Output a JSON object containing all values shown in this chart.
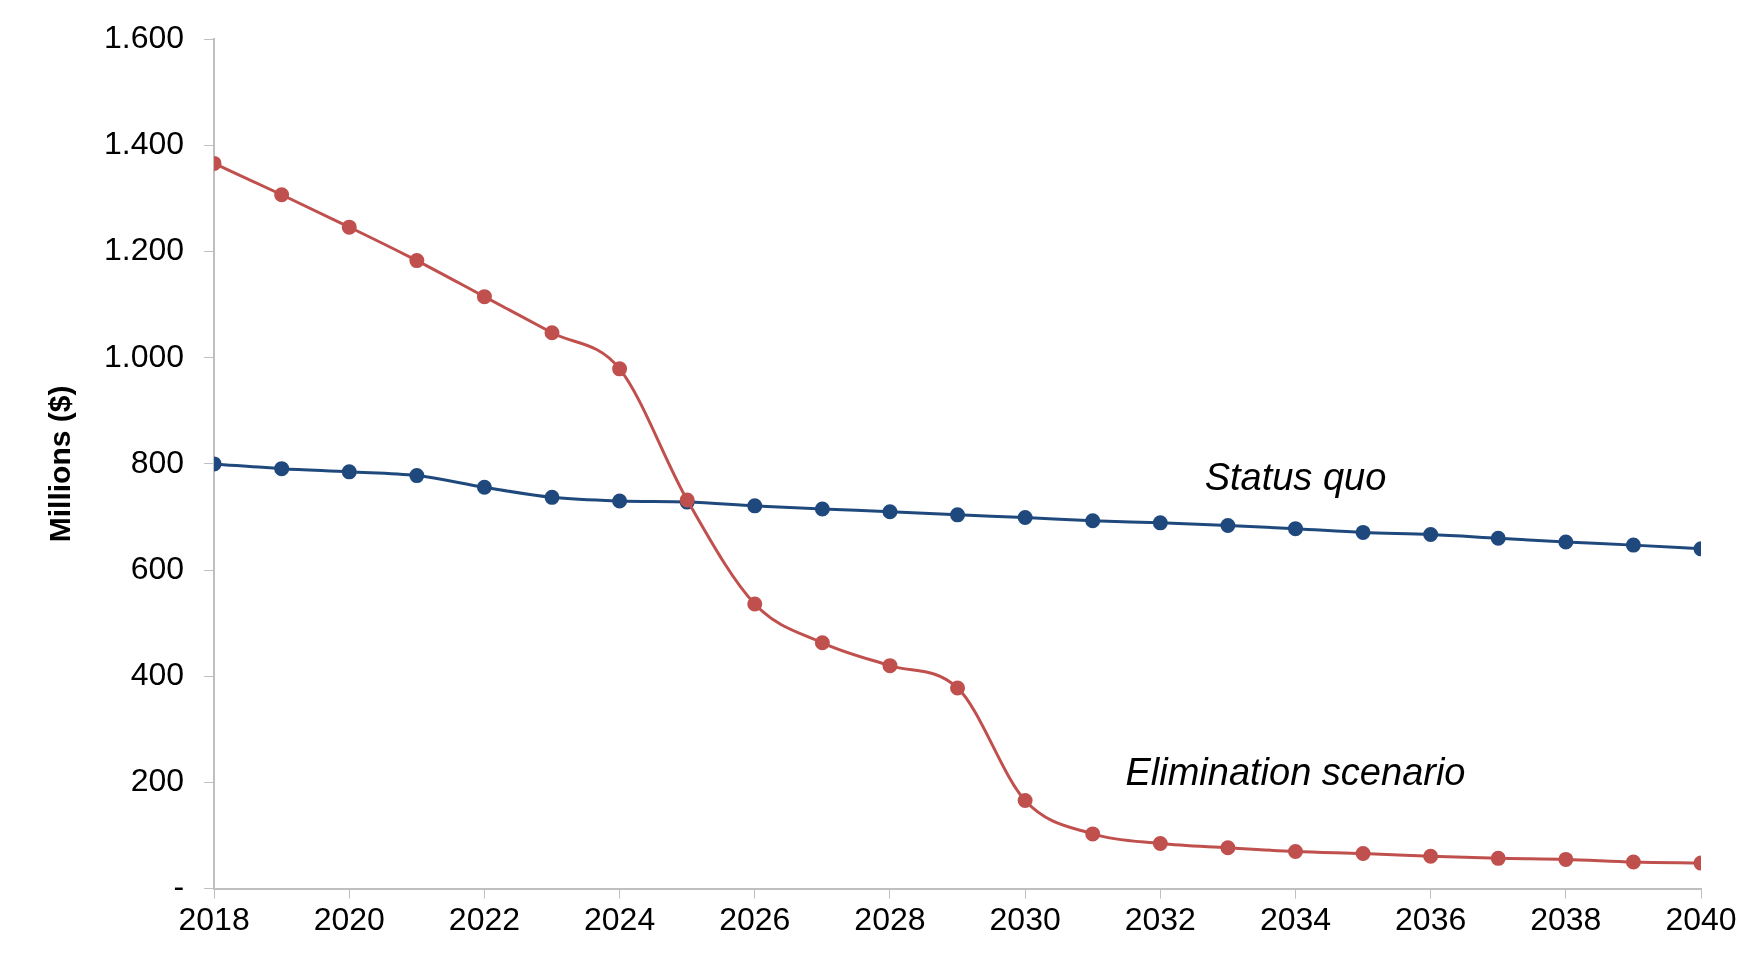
{
  "chart_data": {
    "type": "line",
    "ylabel": "Millions ($)",
    "x": [
      2018,
      2019,
      2020,
      2021,
      2022,
      2023,
      2024,
      2025,
      2026,
      2027,
      2028,
      2029,
      2030,
      2031,
      2032,
      2033,
      2034,
      2035,
      2036,
      2037,
      2038,
      2039,
      2040
    ],
    "xlim": [
      2018,
      2040
    ],
    "xticks": [
      2018,
      2020,
      2022,
      2024,
      2026,
      2028,
      2030,
      2032,
      2034,
      2036,
      2038,
      2040
    ],
    "ylim": [
      0,
      1600
    ],
    "yticks": [
      {
        "value": 0,
        "label": "-"
      },
      {
        "value": 200,
        "label": "200"
      },
      {
        "value": 400,
        "label": "400"
      },
      {
        "value": 600,
        "label": "600"
      },
      {
        "value": 800,
        "label": "800"
      },
      {
        "value": 1000,
        "label": "1.000"
      },
      {
        "value": 1200,
        "label": "1.200"
      },
      {
        "value": 1400,
        "label": "1.400"
      },
      {
        "value": 1600,
        "label": "1.600"
      }
    ],
    "grid": false,
    "legend": false,
    "marker": "circle",
    "line_style": "solid",
    "series": [
      {
        "name": "Status quo",
        "color": "#1f497d",
        "values": [
          800,
          791,
          785,
          778,
          756,
          737,
          730,
          728,
          721,
          715,
          710,
          704,
          699,
          693,
          689,
          684,
          678,
          671,
          667,
          660,
          653,
          647,
          640
        ]
      },
      {
        "name": "Elimination scenario",
        "color": "#c0504d",
        "values": [
          1366,
          1307,
          1246,
          1183,
          1115,
          1047,
          979,
          732,
          536,
          463,
          420,
          378,
          166,
          103,
          85,
          77,
          70,
          66,
          61,
          57,
          55,
          50,
          48
        ]
      }
    ]
  }
}
